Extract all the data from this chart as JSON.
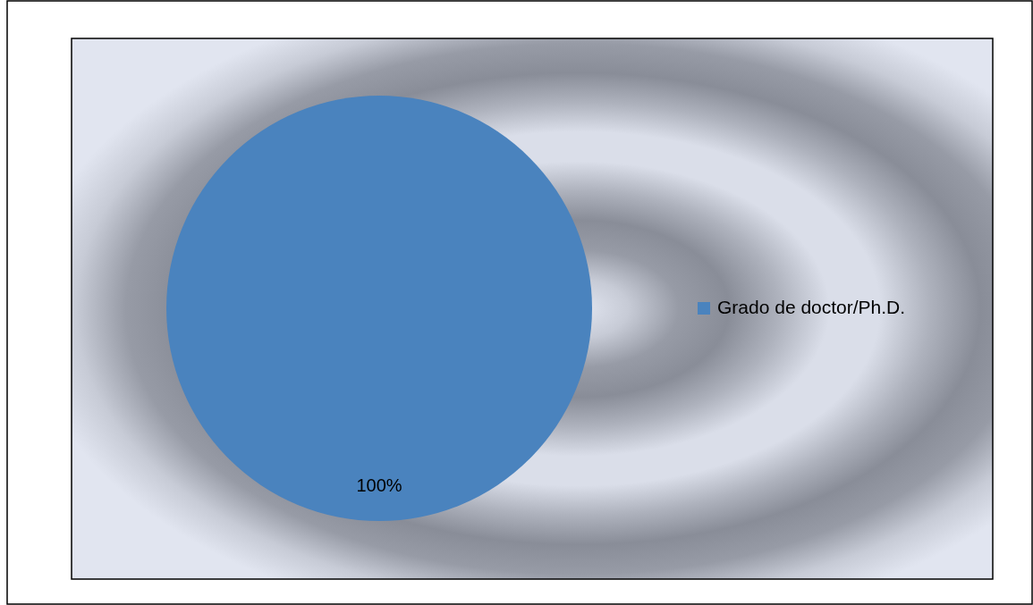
{
  "chart_data": {
    "type": "pie",
    "categories": [
      "Grado de doctor/Ph.D."
    ],
    "values": [
      100
    ],
    "value_labels": [
      "100%"
    ],
    "colors": [
      "#4a83be"
    ],
    "legend": "right"
  }
}
